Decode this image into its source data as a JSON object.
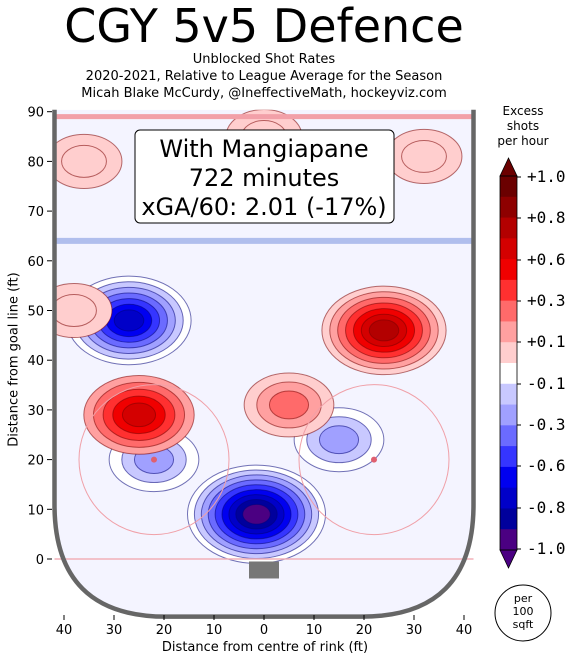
{
  "header": {
    "title": "CGY 5v5 Defence",
    "subtitle_1": "Unblocked Shot Rates",
    "subtitle_2": "2020-2021, Relative to League Average for the Season",
    "subtitle_3": "Micah Blake McCurdy, @IneffectiveMath, hockeyviz.com"
  },
  "annotation": {
    "line_1": "With Mangiapane",
    "line_2": "722 minutes",
    "line_3": "xGA/60: 2.01 (-17%)"
  },
  "colorbar": {
    "title_1": "Excess",
    "title_2": "shots",
    "title_3": "per hour",
    "ticks": [
      "+1.0",
      "+0.8",
      "+0.6",
      "+0.3",
      "+0.1",
      "-0.1",
      "-0.3",
      "-0.6",
      "-0.8",
      "-1.0"
    ],
    "colors": [
      "#6b0000",
      "#8e0000",
      "#b30000",
      "#d40000",
      "#f00000",
      "#ff3030",
      "#ff6a6a",
      "#ffa0a0",
      "#ffcece",
      "#ffffff",
      "#c8c8ff",
      "#a0a0ff",
      "#6b6bff",
      "#3535ff",
      "#0000f0",
      "#0000c8",
      "#00009c",
      "#4b0082"
    ],
    "unit_1": "per",
    "unit_2": "100",
    "unit_3": "sqft"
  },
  "chart_data": {
    "type": "heatmap",
    "title": "CGY 5v5 Defence",
    "subtitle": "Unblocked Shot Rates, 2020-2021, Relative to League Average for the Season",
    "xlabel": "Distance from centre of rink (ft)",
    "ylabel": "Distance from goal line (ft)",
    "xlim": [
      -42.5,
      42.5
    ],
    "ylim": [
      -11,
      90
    ],
    "x_ticks": [
      "40",
      "30",
      "20",
      "10",
      "0",
      "10",
      "20",
      "30",
      "40"
    ],
    "x_tick_values": [
      -40,
      -30,
      -20,
      -10,
      0,
      10,
      20,
      30,
      40
    ],
    "y_ticks": [
      "0",
      "10",
      "20",
      "30",
      "40",
      "50",
      "60",
      "70",
      "80",
      "90"
    ],
    "y_tick_values": [
      0,
      10,
      20,
      30,
      40,
      50,
      60,
      70,
      80,
      90
    ],
    "colorbar_range": [
      -1.0,
      1.0
    ],
    "features": [
      {
        "kind": "deficit",
        "x": -1.5,
        "y": 9,
        "level": -1.0
      },
      {
        "kind": "deficit",
        "x": -27,
        "y": 48,
        "level": -0.8
      },
      {
        "kind": "deficit",
        "x": 15,
        "y": 24,
        "level": -0.3
      },
      {
        "kind": "deficit",
        "x": -22,
        "y": 20,
        "level": -0.3
      },
      {
        "kind": "excess",
        "x": 24,
        "y": 46,
        "level": 0.8
      },
      {
        "kind": "excess",
        "x": -25,
        "y": 29,
        "level": 0.6
      },
      {
        "kind": "excess",
        "x": 5,
        "y": 31,
        "level": 0.3
      },
      {
        "kind": "excess",
        "x": -36,
        "y": 80,
        "level": 0.1
      },
      {
        "kind": "excess",
        "x": -38,
        "y": 50,
        "level": 0.1
      },
      {
        "kind": "excess",
        "x": 32,
        "y": 81,
        "level": 0.1
      },
      {
        "kind": "excess",
        "x": 0,
        "y": 85,
        "level": 0.1
      }
    ]
  }
}
